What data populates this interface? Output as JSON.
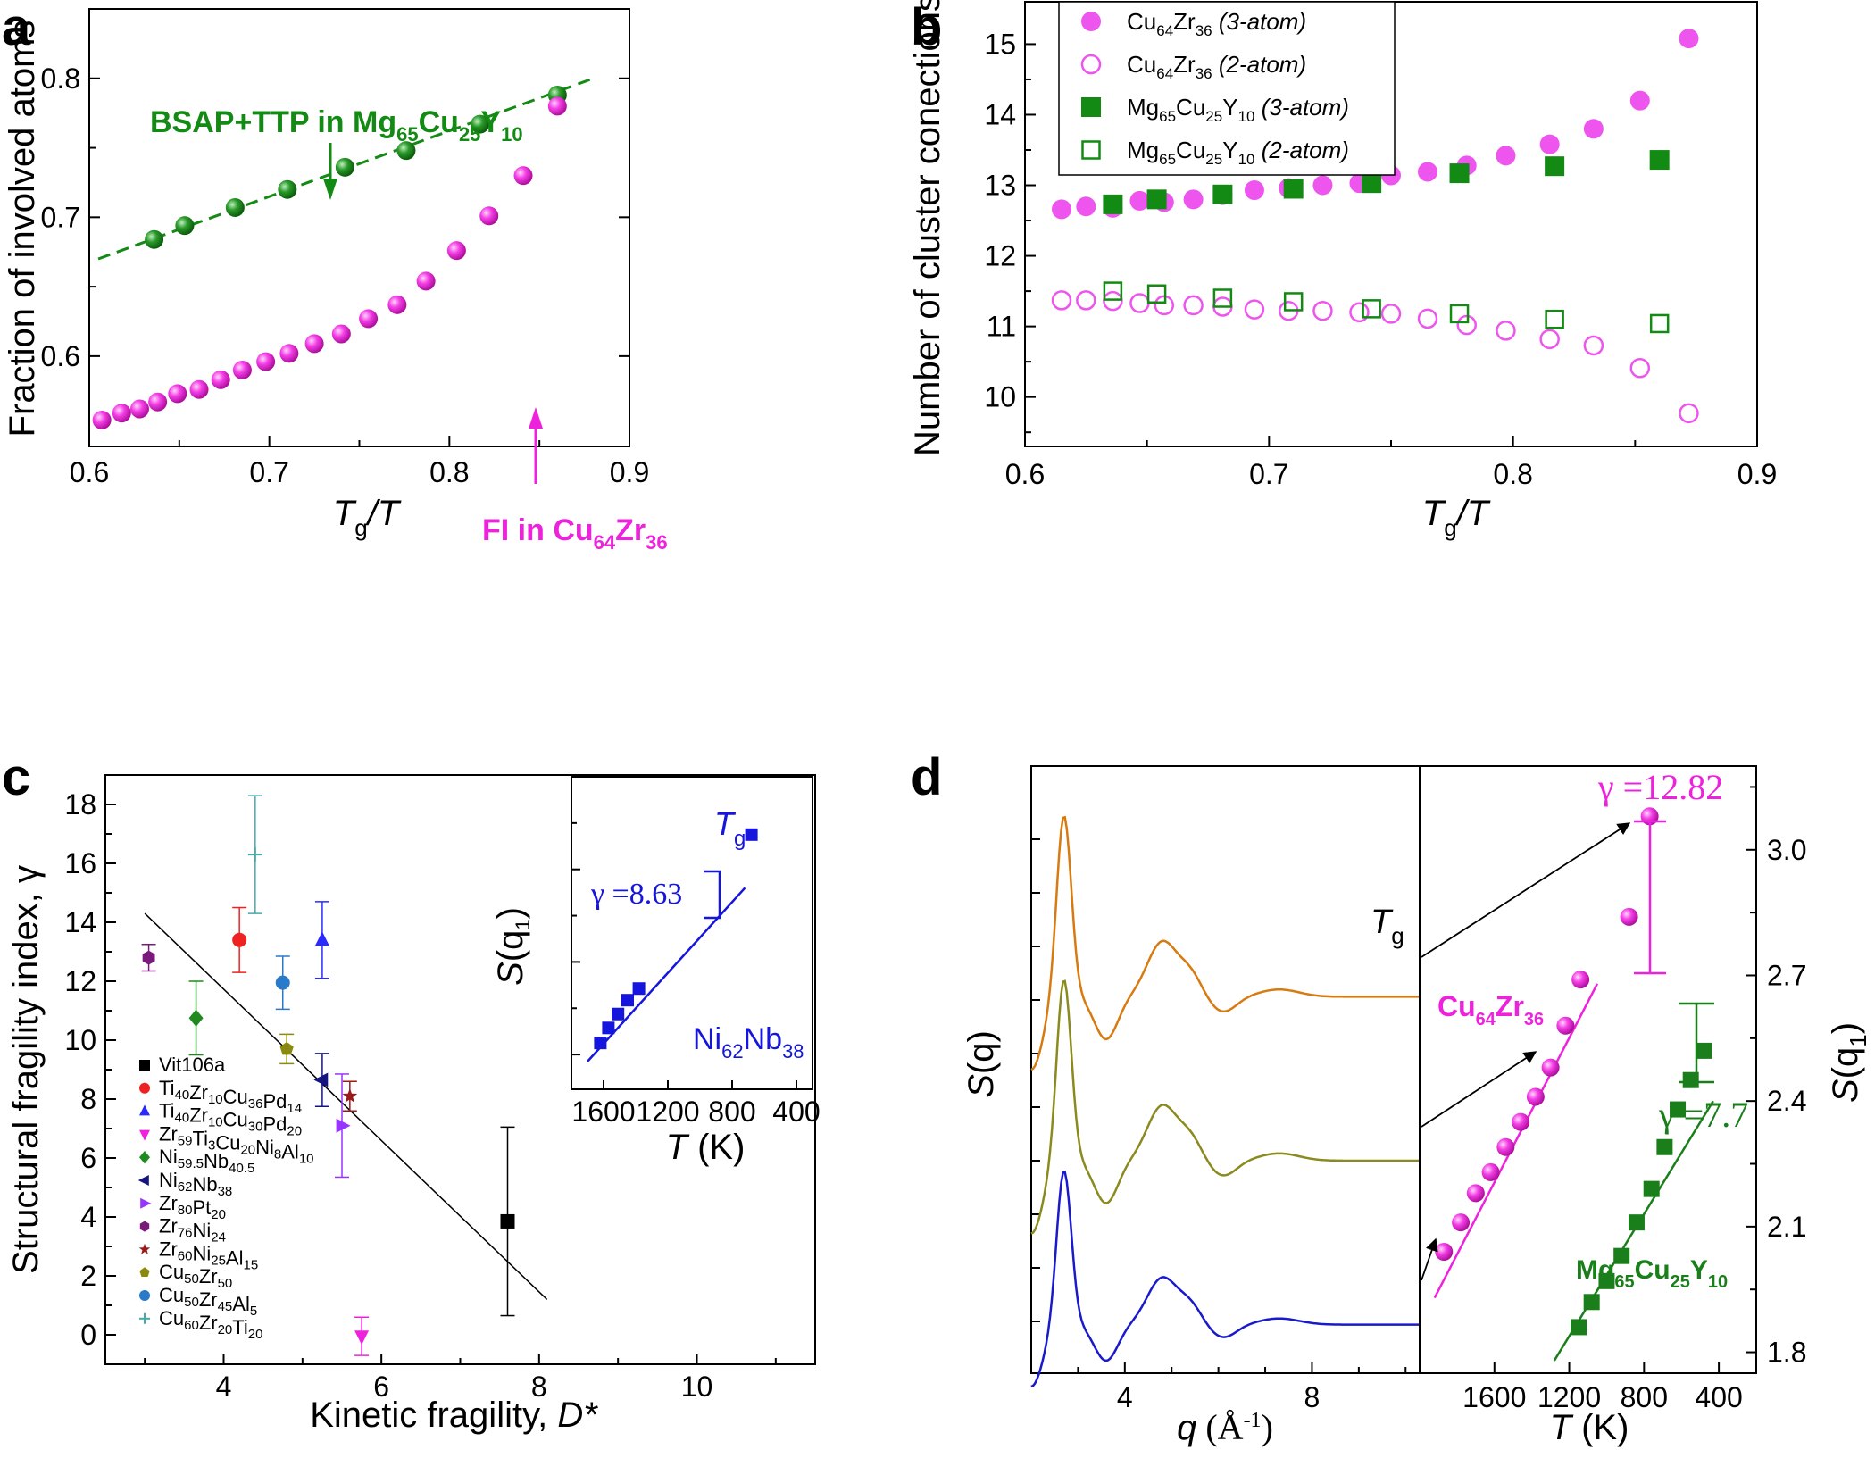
{
  "panels": {
    "a": {
      "letter": "a"
    },
    "b": {
      "letter": "b"
    },
    "c": {
      "letter": "c"
    },
    "d": {
      "letter": "d"
    }
  },
  "colors": {
    "magenta": "#ee22dd",
    "green": "#138a13",
    "darkgreen": "#1a7f1a",
    "blue": "#1515dd",
    "orange": "#d77a10",
    "olive": "#8a8a1e",
    "navy": "#1a1acc"
  },
  "chart_data": [
    {
      "panel": "a",
      "type": "scatter",
      "xlabel_main": "T",
      "xlabel_sub": "g",
      "xlabel_rest": "/T",
      "ylabel": "Fraction of involved atoms",
      "xlim": [
        0.6,
        0.9
      ],
      "ylim": [
        0.535,
        0.85
      ],
      "xticks": [
        "0.6",
        "0.7",
        "0.8",
        "0.9"
      ],
      "yticks": [
        "0.6",
        "0.7",
        "0.8"
      ],
      "series": [
        {
          "name": "BSAP+TTP in Mg65Cu25Y10",
          "x": [
            0.636,
            0.653,
            0.681,
            0.71,
            0.742,
            0.776,
            0.817,
            0.86
          ],
          "y": [
            0.684,
            0.694,
            0.707,
            0.72,
            0.736,
            0.748,
            0.767,
            0.788
          ]
        },
        {
          "name": "FI in Cu64Zr36",
          "x": [
            0.607,
            0.618,
            0.628,
            0.638,
            0.649,
            0.661,
            0.673,
            0.685,
            0.698,
            0.711,
            0.725,
            0.74,
            0.755,
            0.771,
            0.787,
            0.804,
            0.822,
            0.841,
            0.86
          ],
          "y": [
            0.554,
            0.559,
            0.562,
            0.567,
            0.573,
            0.576,
            0.583,
            0.59,
            0.596,
            0.602,
            0.609,
            0.616,
            0.627,
            0.637,
            0.654,
            0.676,
            0.701,
            0.73,
            0.78
          ]
        }
      ],
      "fit": {
        "x": [
          0.605,
          0.88
        ],
        "y": [
          0.67,
          0.8
        ]
      },
      "annotations": {
        "green_pre": "BSAP+TTP in Mg",
        "green_s1": "65",
        "green_m1": "Cu",
        "green_s2": "25",
        "green_m2": "Y",
        "green_s3": "10",
        "mag_pre": "FI in Cu",
        "mag_s1": "64",
        "mag_m1": "Zr",
        "mag_s2": "36"
      }
    },
    {
      "panel": "b",
      "type": "scatter",
      "xlabel_main": "T",
      "xlabel_sub": "g",
      "xlabel_rest": "/T",
      "ylabel": "Number of cluster conections",
      "xlim": [
        0.6,
        0.9
      ],
      "ylim": [
        9.3,
        15.6
      ],
      "xticks": [
        "0.6",
        "0.7",
        "0.8",
        "0.9"
      ],
      "yticks": [
        "10",
        "11",
        "12",
        "13",
        "14",
        "15"
      ],
      "legend": [
        {
          "m1": "Cu",
          "s1": "64",
          "m2": "Zr",
          "s2": "36",
          "s3": "",
          "m3": "",
          "note": " (3-atom)"
        },
        {
          "m1": "Cu",
          "s1": "64",
          "m2": "Zr",
          "s2": "36",
          "s3": "",
          "m3": "",
          "note": " (2-atom)"
        },
        {
          "m1": "Mg",
          "s1": "65",
          "m2": "Cu",
          "s2": "25",
          "m3": "Y",
          "s3": "10",
          "note": " (3-atom)"
        },
        {
          "m1": "Mg",
          "s1": "65",
          "m2": "Cu",
          "s2": "25",
          "m3": "Y",
          "s3": "10",
          "note": " (2-atom)"
        }
      ],
      "series": [
        {
          "name": "Cu64Zr36 (3-atom)",
          "marker": "filled-circle",
          "x": [
            0.615,
            0.625,
            0.636,
            0.647,
            0.657,
            0.669,
            0.681,
            0.694,
            0.708,
            0.722,
            0.737,
            0.75,
            0.765,
            0.781,
            0.797,
            0.815,
            0.833,
            0.852,
            0.872
          ],
          "y": [
            12.66,
            12.7,
            12.68,
            12.78,
            12.76,
            12.8,
            12.86,
            12.93,
            12.96,
            13.0,
            13.03,
            13.14,
            13.19,
            13.28,
            13.42,
            13.58,
            13.8,
            14.2,
            15.08
          ]
        },
        {
          "name": "Cu64Zr36 (2-atom)",
          "marker": "open-circle",
          "x": [
            0.615,
            0.625,
            0.636,
            0.647,
            0.657,
            0.669,
            0.681,
            0.694,
            0.708,
            0.722,
            0.737,
            0.75,
            0.765,
            0.781,
            0.797,
            0.815,
            0.833,
            0.852,
            0.872
          ],
          "y": [
            11.37,
            11.37,
            11.36,
            11.33,
            11.3,
            11.3,
            11.28,
            11.24,
            11.22,
            11.22,
            11.2,
            11.18,
            11.11,
            11.02,
            10.94,
            10.82,
            10.73,
            10.41,
            9.77
          ]
        },
        {
          "name": "Mg65Cu25Y10 (3-atom)",
          "marker": "filled-square",
          "x": [
            0.636,
            0.654,
            0.681,
            0.71,
            0.742,
            0.778,
            0.817,
            0.86
          ],
          "y": [
            12.73,
            12.8,
            12.87,
            12.95,
            13.03,
            13.17,
            13.27,
            13.36
          ]
        },
        {
          "name": "Mg65Cu25Y10 (2-atom)",
          "marker": "open-square",
          "x": [
            0.636,
            0.654,
            0.681,
            0.71,
            0.742,
            0.778,
            0.817,
            0.86
          ],
          "y": [
            11.5,
            11.46,
            11.4,
            11.35,
            11.25,
            11.18,
            11.1,
            11.04
          ]
        }
      ]
    },
    {
      "panel": "c",
      "type": "scatter",
      "xlabel": "Kinetic fragility, ",
      "xlabel_it": "D*",
      "ylabel": "Structural fragility index, γ",
      "xlim": [
        2.5,
        11.5
      ],
      "ylim": [
        -1,
        19
      ],
      "xticks": [
        "4",
        "6",
        "8",
        "10"
      ],
      "yticks": [
        "0",
        "2",
        "4",
        "6",
        "8",
        "10",
        "12",
        "14",
        "16",
        "18"
      ],
      "points": [
        {
          "label": "Vit106a",
          "x": 7.6,
          "y": 3.85,
          "err": 3.2,
          "marker": "square",
          "color": "#000000"
        },
        {
          "label": "Ti40Zr10Cu36Pd14",
          "x": 4.2,
          "y": 13.4,
          "err": 1.1,
          "marker": "circle",
          "color": "#ee2222"
        },
        {
          "label": "Ti40Zr10Cu30Pd20",
          "x": 5.25,
          "y": 13.4,
          "err": 1.3,
          "marker": "triangle-up",
          "color": "#2a2aff"
        },
        {
          "label": "Zr59Ti3Cu20Ni8Al10",
          "x": 5.75,
          "y": -0.05,
          "err": 0.65,
          "marker": "triangle-down",
          "color": "#ee22dd"
        },
        {
          "label": "Ni59.5Nb40.5",
          "x": 3.65,
          "y": 10.75,
          "err": 1.25,
          "marker": "diamond",
          "color": "#1f8a1f"
        },
        {
          "label": "Ni62Nb38",
          "x": 5.25,
          "y": 8.65,
          "err": 0.9,
          "marker": "triangle-left",
          "color": "#151580"
        },
        {
          "label": "Zr80Pt20",
          "x": 5.5,
          "y": 7.1,
          "err": 1.75,
          "marker": "triangle-right",
          "color": "#9933ff"
        },
        {
          "label": "Zr76Ni24",
          "x": 3.05,
          "y": 12.8,
          "err": 0.45,
          "marker": "hexagon",
          "color": "#7a1a7a"
        },
        {
          "label": "Zr60Ni25Al15",
          "x": 5.6,
          "y": 8.1,
          "err": 0.5,
          "marker": "star",
          "color": "#9b1a1a"
        },
        {
          "label": "Cu50Zr50",
          "x": 4.8,
          "y": 9.7,
          "err": 0.5,
          "marker": "pentagon",
          "color": "#8a8a10"
        },
        {
          "label": "Cu50Zr45Al5",
          "x": 4.75,
          "y": 11.95,
          "err": 0.9,
          "marker": "circle",
          "color": "#2a7acc"
        },
        {
          "label": "Cu60Zr20Ti20",
          "x": 4.4,
          "y": 16.3,
          "err": 2.0,
          "marker": "plus",
          "color": "#44aaaa"
        }
      ],
      "legend_items": [
        {
          "parts": [
            [
              "Vit106a",
              ""
            ]
          ]
        },
        {
          "parts": [
            [
              "Ti",
              "40"
            ],
            [
              "Zr",
              "10"
            ],
            [
              "Cu",
              "36"
            ],
            [
              "Pd",
              "14"
            ]
          ]
        },
        {
          "parts": [
            [
              "Ti",
              "40"
            ],
            [
              "Zr",
              "10"
            ],
            [
              "Cu",
              "30"
            ],
            [
              "Pd",
              "20"
            ]
          ]
        },
        {
          "parts": [
            [
              "Zr",
              "59"
            ],
            [
              "Ti",
              "3"
            ],
            [
              "Cu",
              "20"
            ],
            [
              "Ni",
              "8"
            ],
            [
              "Al",
              "10"
            ]
          ]
        },
        {
          "parts": [
            [
              "Ni",
              "59.5"
            ],
            [
              "Nb",
              "40.5"
            ]
          ]
        },
        {
          "parts": [
            [
              "Ni",
              "62"
            ],
            [
              "Nb",
              "38"
            ]
          ]
        },
        {
          "parts": [
            [
              "Zr",
              "80"
            ],
            [
              "Pt",
              "20"
            ]
          ]
        },
        {
          "parts": [
            [
              "Zr",
              "76"
            ],
            [
              "Ni",
              "24"
            ]
          ]
        },
        {
          "parts": [
            [
              "Zr",
              "60"
            ],
            [
              "Ni",
              "25"
            ],
            [
              "Al",
              "15"
            ]
          ]
        },
        {
          "parts": [
            [
              "Cu",
              "50"
            ],
            [
              "Zr",
              "50"
            ]
          ]
        },
        {
          "parts": [
            [
              "Cu",
              "50"
            ],
            [
              "Zr",
              "45"
            ],
            [
              "Al",
              "5"
            ]
          ]
        },
        {
          "parts": [
            [
              "Cu",
              "60"
            ],
            [
              "Zr",
              "20"
            ],
            [
              "Ti",
              "20"
            ]
          ]
        }
      ],
      "fit": {
        "x": [
          3.0,
          8.1
        ],
        "y": [
          14.3,
          1.2
        ]
      },
      "inset": {
        "type": "scatter",
        "xlabel_it": "T",
        "xlabel_rest": " (K)",
        "ylabel_it": "S",
        "ylabel_p": "(q",
        "ylabel_sub": "1",
        "ylabel_end": ")",
        "xlim": [
          1800,
          300
        ],
        "xticks": [
          "1600",
          "1200",
          "800",
          "400"
        ],
        "x": [
          1620,
          1570,
          1510,
          1450,
          1380,
          680
        ],
        "y": [
          0.05,
          0.115,
          0.175,
          0.235,
          0.285,
          0.95
        ],
        "fit": {
          "x": [
            1700,
            720
          ],
          "y": [
            -0.03,
            0.72
          ]
        },
        "gamma": "γ =8.63",
        "tg_it": "T",
        "tg_sub": "g",
        "alloy_m1": "Ni",
        "alloy_s1": "62",
        "alloy_m2": "Nb",
        "alloy_s2": "38"
      }
    },
    {
      "panel": "d",
      "type": "line",
      "xlabel_it": "q",
      "xlabel_rest": " (Å",
      "xlabel_sup": "-1",
      "xlabel_end": ")",
      "ylabel_it": "S",
      "ylabel_rest": "(q)",
      "xlim": [
        2,
        10.3
      ],
      "xticks": [
        "4",
        "8"
      ],
      "curves": [
        {
          "name": "upper",
          "color": "#d77a10",
          "offset": 0.62
        },
        {
          "name": "middle",
          "color": "#8a8a1e",
          "offset": 0.35
        },
        {
          "name": "lower",
          "color": "#1a1acc",
          "offset": 0.08
        }
      ],
      "tg_it": "T",
      "tg_sub": "g",
      "right": {
        "xlabel_it": "T",
        "xlabel_rest": " (K)",
        "ylabel_it": "S",
        "ylabel_p": "(q",
        "ylabel_sub": "1",
        "ylabel_end": ")",
        "xlim": [
          2000,
          200
        ],
        "ylim": [
          1.75,
          3.2
        ],
        "xticks": [
          "1600",
          "1200",
          "800",
          "400"
        ],
        "yticks": [
          "1.8",
          "2.1",
          "2.4",
          "2.7",
          "3.0"
        ],
        "series": [
          {
            "name": "Cu64Zr36",
            "x": [
              1870,
              1780,
              1700,
              1620,
              1540,
              1460,
              1380,
              1300,
              1220,
              1140,
              1060,
              980,
              880,
              770
            ],
            "y": [
              2.04,
              2.11,
              2.18,
              2.23,
              2.29,
              2.35,
              2.41,
              2.48,
              2.58,
              2.69,
              2.84,
              3.08,
              3.08,
              3.08
            ]
          },
          {
            "name": "Mg65Cu25Y10",
            "x": [
              1150,
              1080,
              1000,
              920,
              840,
              760,
              690,
              620,
              550,
              480
            ],
            "y": [
              1.86,
              1.92,
              1.97,
              2.03,
              2.11,
              2.19,
              2.29,
              2.38,
              2.45,
              2.52
            ]
          }
        ],
        "cu_fit": {
          "x": [
            1920,
            1050
          ],
          "y": [
            1.93,
            2.68
          ]
        },
        "mg_fit": {
          "x": [
            1280,
            430
          ],
          "y": [
            1.78,
            2.4
          ]
        },
        "gamma_cu": "γ =12.82",
        "gamma_mg": "γ =7.7",
        "cu_m1": "Cu",
        "cu_s1": "64",
        "cu_m2": "Zr",
        "cu_s2": "36",
        "mg_m1": "Mg",
        "mg_s1": "65",
        "mg_m2": "Cu",
        "mg_s2": "25",
        "mg_m3": "Y",
        "mg_s3": "10"
      }
    }
  ]
}
